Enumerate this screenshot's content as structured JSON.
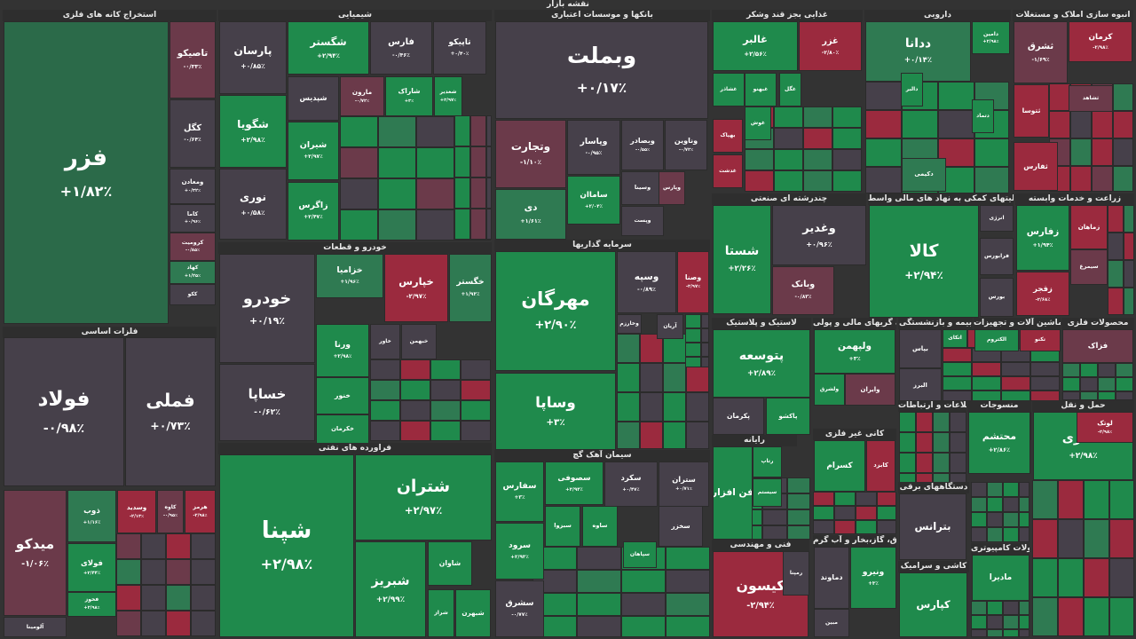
{
  "title": "نقشه بازار",
  "colors": {
    "up_strong": "#1f8a4c",
    "up_mid": "#2f7a52",
    "neutral": "#46404a",
    "down_mid": "#6b3a4a",
    "down_strong": "#9b2a3e",
    "text": "#ffffff"
  },
  "chart_data": {
    "type": "treemap",
    "sectors": [
      {
        "name": "استخراج کانه های فلزی",
        "tiles": [
          {
            "symbol": "فزر",
            "change": "+۱/۸۲٪",
            "tone": "neutral_up"
          },
          {
            "symbol": "تاصیکو",
            "change": "-۰/۳۳٪",
            "tone": "down_mid"
          },
          {
            "symbol": "کگل",
            "change": "-۰/۶۴٪",
            "tone": "neutral"
          },
          {
            "symbol": "ومعادن",
            "change": "+۰/۳۲٪",
            "tone": "neutral"
          },
          {
            "symbol": "کاما",
            "change": "+۰/۹۶٪",
            "tone": "neutral"
          },
          {
            "symbol": "کرومیت",
            "change": "-۰/۸۵٪",
            "tone": "down_mid"
          },
          {
            "symbol": "کهاد",
            "change": "+۱/۲۵٪",
            "tone": "up_mid"
          },
          {
            "symbol": "ککو",
            "change": "",
            "tone": "neutral"
          }
        ]
      },
      {
        "name": "فلزات اساسی",
        "tiles": [
          {
            "symbol": "فولاد",
            "change": "-۰/۹۸٪",
            "tone": "neutral"
          },
          {
            "symbol": "فملی",
            "change": "+۰/۷۳٪",
            "tone": "neutral"
          },
          {
            "symbol": "میدکو",
            "change": "-۱/۰۶٪",
            "tone": "down_mid"
          },
          {
            "symbol": "ذوب",
            "change": "+۱/۱۶٪",
            "tone": "up_mid"
          },
          {
            "symbol": "وسدید",
            "change": "-۲/۱۳٪",
            "tone": "down_strong"
          },
          {
            "symbol": "کاوه",
            "change": "-۰/۹۵٪",
            "tone": "down_mid"
          },
          {
            "symbol": "هرمز",
            "change": "-۲/۹۸٪",
            "tone": "down_strong"
          },
          {
            "symbol": "فولای",
            "change": "+۲/۴۴٪",
            "tone": "up_strong"
          },
          {
            "symbol": "فخوز",
            "change": "+۲/۹۸٪",
            "tone": "up_strong"
          },
          {
            "symbol": "آلومینا",
            "change": "",
            "tone": "neutral"
          }
        ]
      },
      {
        "name": "شیمیایی",
        "tiles": [
          {
            "symbol": "پارسان",
            "change": "+۰/۸۵٪",
            "tone": "neutral"
          },
          {
            "symbol": "شگستر",
            "change": "+۲/۹۴٪",
            "tone": "up_strong"
          },
          {
            "symbol": "فارس",
            "change": "-۰/۴۶٪",
            "tone": "neutral"
          },
          {
            "symbol": "تاپیکو",
            "change": "+۰/۴۰٪",
            "tone": "neutral"
          },
          {
            "symbol": "شگویا",
            "change": "+۲/۹۸٪",
            "tone": "up_strong"
          },
          {
            "symbol": "شپدیس",
            "change": "",
            "tone": "neutral"
          },
          {
            "symbol": "مارون",
            "change": "-۰/۷۲٪",
            "tone": "down_mid"
          },
          {
            "symbol": "شاراک",
            "change": "+۳٪",
            "tone": "up_strong"
          },
          {
            "symbol": "شغدیر",
            "change": "+۲/۹۷٪",
            "tone": "up_strong"
          },
          {
            "symbol": "نوری",
            "change": "+۰/۵۸٪",
            "tone": "neutral"
          },
          {
            "symbol": "شیران",
            "change": "+۲/۹۷٪",
            "tone": "up_strong"
          },
          {
            "symbol": "زاگرس",
            "change": "+۲/۴۷٪",
            "tone": "up_strong"
          }
        ]
      },
      {
        "name": "بانکها و موسسات اعتباری",
        "tiles": [
          {
            "symbol": "وبملت",
            "change": "+۰/۱۷٪",
            "tone": "neutral"
          },
          {
            "symbol": "وتجارت",
            "change": "-۱/۱۰٪",
            "tone": "down_mid"
          },
          {
            "symbol": "وبصادر",
            "change": "-۰/۵۵٪",
            "tone": "neutral"
          },
          {
            "symbol": "وناوین",
            "change": "-۰/۷۲٪",
            "tone": "neutral"
          },
          {
            "symbol": "دی",
            "change": "+۱/۶۱٪",
            "tone": "up_mid"
          },
          {
            "symbol": "ساماان",
            "change": "+۲/۰۴٪",
            "tone": "up_strong"
          },
          {
            "symbol": "وپاسار",
            "change": "-۰/۹۵٪",
            "tone": "neutral"
          },
          {
            "symbol": "وسینا",
            "change": "",
            "tone": "neutral"
          },
          {
            "symbol": "وپارس",
            "change": "",
            "tone": "down_mid"
          },
          {
            "symbol": "وپست",
            "change": "",
            "tone": "neutral"
          }
        ]
      },
      {
        "name": "غذایی بجز قند وشکر",
        "tiles": [
          {
            "symbol": "غالبر",
            "change": "+۲/۵۶٪",
            "tone": "up_strong"
          },
          {
            "symbol": "غزر",
            "change": "-۲/۸۰٪",
            "tone": "down_strong"
          },
          {
            "symbol": "غشاذر",
            "change": "",
            "tone": "up_strong"
          },
          {
            "symbol": "غبهنو",
            "change": "",
            "tone": "up_strong"
          },
          {
            "symbol": "غگل",
            "change": "",
            "tone": "up_strong"
          },
          {
            "symbol": "غوش",
            "change": "",
            "tone": "up_strong"
          },
          {
            "symbol": "بهپاک",
            "change": "",
            "tone": "down_strong"
          },
          {
            "symbol": "غدشت",
            "change": "",
            "tone": "down_strong"
          }
        ]
      },
      {
        "name": "دارویی",
        "tiles": [
          {
            "symbol": "ددانا",
            "change": "+۰/۱۴٪",
            "tone": "up_mid"
          },
          {
            "symbol": "دامین",
            "change": "+۲/۹۸٪",
            "tone": "up_strong"
          },
          {
            "symbol": "دتماد",
            "change": "",
            "tone": "up_strong"
          },
          {
            "symbol": "دالبر",
            "change": "",
            "tone": "up_strong"
          },
          {
            "symbol": "دکیمی",
            "change": "",
            "tone": "up_mid"
          }
        ]
      },
      {
        "name": "انبوه سازی املاک و مستغلات",
        "tiles": [
          {
            "symbol": "ثشرق",
            "change": "-۱/۶۹٪",
            "tone": "down_mid"
          },
          {
            "symbol": "کرمان",
            "change": "-۲/۹۸٪",
            "tone": "down_strong"
          },
          {
            "symbol": "ثشاهد",
            "change": "",
            "tone": "down_mid"
          },
          {
            "symbol": "ثتوسا",
            "change": "",
            "tone": "down_strong"
          },
          {
            "symbol": "ثفارس",
            "change": "",
            "tone": "down_strong"
          }
        ]
      },
      {
        "name": "خودرو و قطعات",
        "tiles": [
          {
            "symbol": "خودرو",
            "change": "+۰/۱۹٪",
            "tone": "neutral"
          },
          {
            "symbol": "خزامیا",
            "change": "+۱/۹۶٪",
            "tone": "up_mid"
          },
          {
            "symbol": "خپارس",
            "change": "-۲/۹۷٪",
            "tone": "down_strong"
          },
          {
            "symbol": "خگستر",
            "change": "+۱/۹۳٪",
            "tone": "up_mid"
          },
          {
            "symbol": "خساپا",
            "change": "-۰/۶۲٪",
            "tone": "neutral"
          },
          {
            "symbol": "ورنا",
            "change": "+۲/۹۸٪",
            "tone": "up_strong"
          },
          {
            "symbol": "خاور",
            "change": "",
            "tone": "neutral"
          },
          {
            "symbol": "خبهمن",
            "change": "",
            "tone": "neutral"
          },
          {
            "symbol": "خنور",
            "change": "",
            "tone": "up_strong"
          },
          {
            "symbol": "خکرمان",
            "change": "",
            "tone": "up_strong"
          }
        ]
      },
      {
        "name": "سرمایه گذاریها",
        "tiles": [
          {
            "symbol": "مهرگان",
            "change": "+۲/۹۰٪",
            "tone": "up_strong"
          },
          {
            "symbol": "وسپه",
            "change": "-۰/۸۹٪",
            "tone": "neutral"
          },
          {
            "symbol": "وصنا",
            "change": "-۲/۹۷٪",
            "tone": "down_strong"
          },
          {
            "symbol": "وساپا",
            "change": "+۳٪",
            "tone": "up_strong"
          },
          {
            "symbol": "وخارزم",
            "change": "",
            "tone": "neutral"
          },
          {
            "symbol": "آریان",
            "change": "",
            "tone": "neutral"
          }
        ]
      },
      {
        "name": "فراورده های نفتی",
        "tiles": [
          {
            "symbol": "شپنا",
            "change": "+۲/۹۸٪",
            "tone": "up_strong"
          },
          {
            "symbol": "شتران",
            "change": "+۲/۹۷٪",
            "tone": "up_strong"
          },
          {
            "symbol": "شبریز",
            "change": "+۲/۹۹٪",
            "tone": "up_strong"
          },
          {
            "symbol": "شاوان",
            "change": "",
            "tone": "up_strong"
          },
          {
            "symbol": "شراز",
            "change": "",
            "tone": "up_strong"
          },
          {
            "symbol": "شبهرن",
            "change": "",
            "tone": "up_strong"
          }
        ]
      },
      {
        "name": "سیمان آهک گچ",
        "tiles": [
          {
            "symbol": "سفارس",
            "change": "+۳٪",
            "tone": "up_strong"
          },
          {
            "symbol": "سصوفی",
            "change": "+۲/۹۴٪",
            "tone": "up_strong"
          },
          {
            "symbol": "سکرد",
            "change": "+۰/۴۷٪",
            "tone": "neutral"
          },
          {
            "symbol": "ستران",
            "change": "+۰/۷۱٪",
            "tone": "neutral"
          },
          {
            "symbol": "سرود",
            "change": "+۲/۹۳٪",
            "tone": "up_strong"
          },
          {
            "symbol": "سشرق",
            "change": "-۰/۷۷٪",
            "tone": "neutral"
          },
          {
            "symbol": "سبزوا",
            "change": "",
            "tone": "up_strong"
          },
          {
            "symbol": "سخزر",
            "change": "",
            "tone": "neutral"
          },
          {
            "symbol": "سپاهان",
            "change": "",
            "tone": "up_strong"
          },
          {
            "symbol": "ساوه",
            "change": "",
            "tone": "up_strong"
          }
        ]
      },
      {
        "name": "چندرشته ای صنعتی",
        "tiles": [
          {
            "symbol": "شستا",
            "change": "+۲/۲۶٪",
            "tone": "up_strong"
          },
          {
            "symbol": "وغدیر",
            "change": "+۰/۹۶٪",
            "tone": "neutral"
          },
          {
            "symbol": "وبانک",
            "change": "-۰/۸۳٪",
            "tone": "down_mid"
          }
        ]
      },
      {
        "name": "فعالیتهای کمکی به نهاد های مالی واسط",
        "tiles": [
          {
            "symbol": "کالا",
            "change": "+۲/۹۴٪",
            "tone": "up_strong"
          },
          {
            "symbol": "انرژی",
            "change": "",
            "tone": "neutral"
          },
          {
            "symbol": "فرابورس",
            "change": "",
            "tone": "neutral"
          },
          {
            "symbol": "بورس",
            "change": "",
            "tone": "neutral"
          }
        ]
      },
      {
        "name": "زراعت و خدمات وابسته",
        "tiles": [
          {
            "symbol": "زفارس",
            "change": "+۱/۹۴٪",
            "tone": "up_strong"
          },
          {
            "symbol": "زقجر",
            "change": "-۲/۶۸٪",
            "tone": "down_strong"
          },
          {
            "symbol": "زماهان",
            "change": "",
            "tone": "down_strong"
          },
          {
            "symbol": "سیمرغ",
            "change": "",
            "tone": "down_mid"
          }
        ]
      },
      {
        "name": "لاستیک و پلاستیک",
        "tiles": [
          {
            "symbol": "پتوسعه",
            "change": "+۲/۸۹٪",
            "tone": "up_strong"
          },
          {
            "symbol": "پاکشو",
            "change": "",
            "tone": "up_strong"
          },
          {
            "symbol": "پکرمان",
            "change": "",
            "tone": "neutral"
          }
        ]
      },
      {
        "name": "واسطه گریهای مالی و پولی",
        "tiles": [
          {
            "symbol": "ولپهمن",
            "change": "+۳٪",
            "tone": "up_strong"
          },
          {
            "symbol": "ولشرق",
            "change": "",
            "tone": "up_strong"
          },
          {
            "symbol": "وایران",
            "change": "",
            "tone": "down_mid"
          }
        ]
      },
      {
        "name": "بیمه و بازنشستگی",
        "tiles": [
          {
            "symbol": "بپاس",
            "change": "",
            "tone": "neutral"
          },
          {
            "symbol": "البرز",
            "change": "",
            "tone": "neutral"
          },
          {
            "symbol": "دانا",
            "change": "",
            "tone": "down_strong"
          },
          {
            "symbol": "اتکای",
            "change": "",
            "tone": "up_strong"
          }
        ]
      },
      {
        "name": "ماشین آلات و تجهیزات",
        "tiles": [
          {
            "symbol": "الکتروم",
            "change": "",
            "tone": "up_strong"
          },
          {
            "symbol": "تکنو",
            "change": "",
            "tone": "down_strong"
          }
        ]
      },
      {
        "name": "محصولات فلزی",
        "tiles": [
          {
            "symbol": "فزاک",
            "change": "",
            "tone": "down_mid"
          }
        ]
      },
      {
        "name": "رایانه",
        "tiles": [
          {
            "symbol": "فن افزار",
            "change": "",
            "tone": "up_strong"
          },
          {
            "symbol": "رتاپ",
            "change": "",
            "tone": "up_strong"
          },
          {
            "symbol": "سیستم",
            "change": "",
            "tone": "up_strong"
          }
        ]
      },
      {
        "name": "فنی و مهندسی",
        "tiles": [
          {
            "symbol": "کیسون",
            "change": "-۲/۹۴٪",
            "tone": "down_strong"
          },
          {
            "symbol": "رمپنا",
            "change": "",
            "tone": "neutral"
          }
        ]
      },
      {
        "name": "کانی غیر فلزی",
        "tiles": [
          {
            "symbol": "کسرام",
            "change": "",
            "tone": "up_strong"
          },
          {
            "symbol": "کابزد",
            "change": "",
            "tone": "down_strong"
          }
        ]
      },
      {
        "name": "حمل و نقل",
        "tiles": [
          {
            "symbol": "حفاری",
            "change": "+۲/۹۸٪",
            "tone": "up_strong"
          },
          {
            "symbol": "حکشتی",
            "change": "",
            "tone": "neutral"
          }
        ]
      },
      {
        "name": "منسوجات",
        "tiles": [
          {
            "symbol": "محتشم",
            "change": "+۲/۸۶٪",
            "tone": "up_strong"
          }
        ]
      },
      {
        "name": "اطلاعات و ارتباطات",
        "tiles": [
          {
            "symbol": "لوتک",
            "change": "-۲/۹۸٪",
            "tone": "down_strong"
          }
        ]
      },
      {
        "name": "کاشی و سرامیک",
        "tiles": [
          {
            "symbol": "کپارس",
            "change": "",
            "tone": "up_strong"
          }
        ]
      },
      {
        "name": "محصولات کامپیوتری",
        "tiles": [
          {
            "symbol": "مادیرا",
            "change": "",
            "tone": "up_strong"
          }
        ]
      },
      {
        "name": "دستگاههای برقی",
        "tiles": [
          {
            "symbol": "بترانس",
            "change": "",
            "tone": "neutral"
          }
        ]
      },
      {
        "name": "عرضه برق، گاز،بخار و آب گرم",
        "tiles": [
          {
            "symbol": "ونیرو",
            "change": "+۳٪",
            "tone": "up_strong"
          },
          {
            "symbol": "دماوند",
            "change": "",
            "tone": "neutral"
          },
          {
            "symbol": "مبین",
            "change": "",
            "tone": "neutral"
          }
        ]
      }
    ]
  }
}
